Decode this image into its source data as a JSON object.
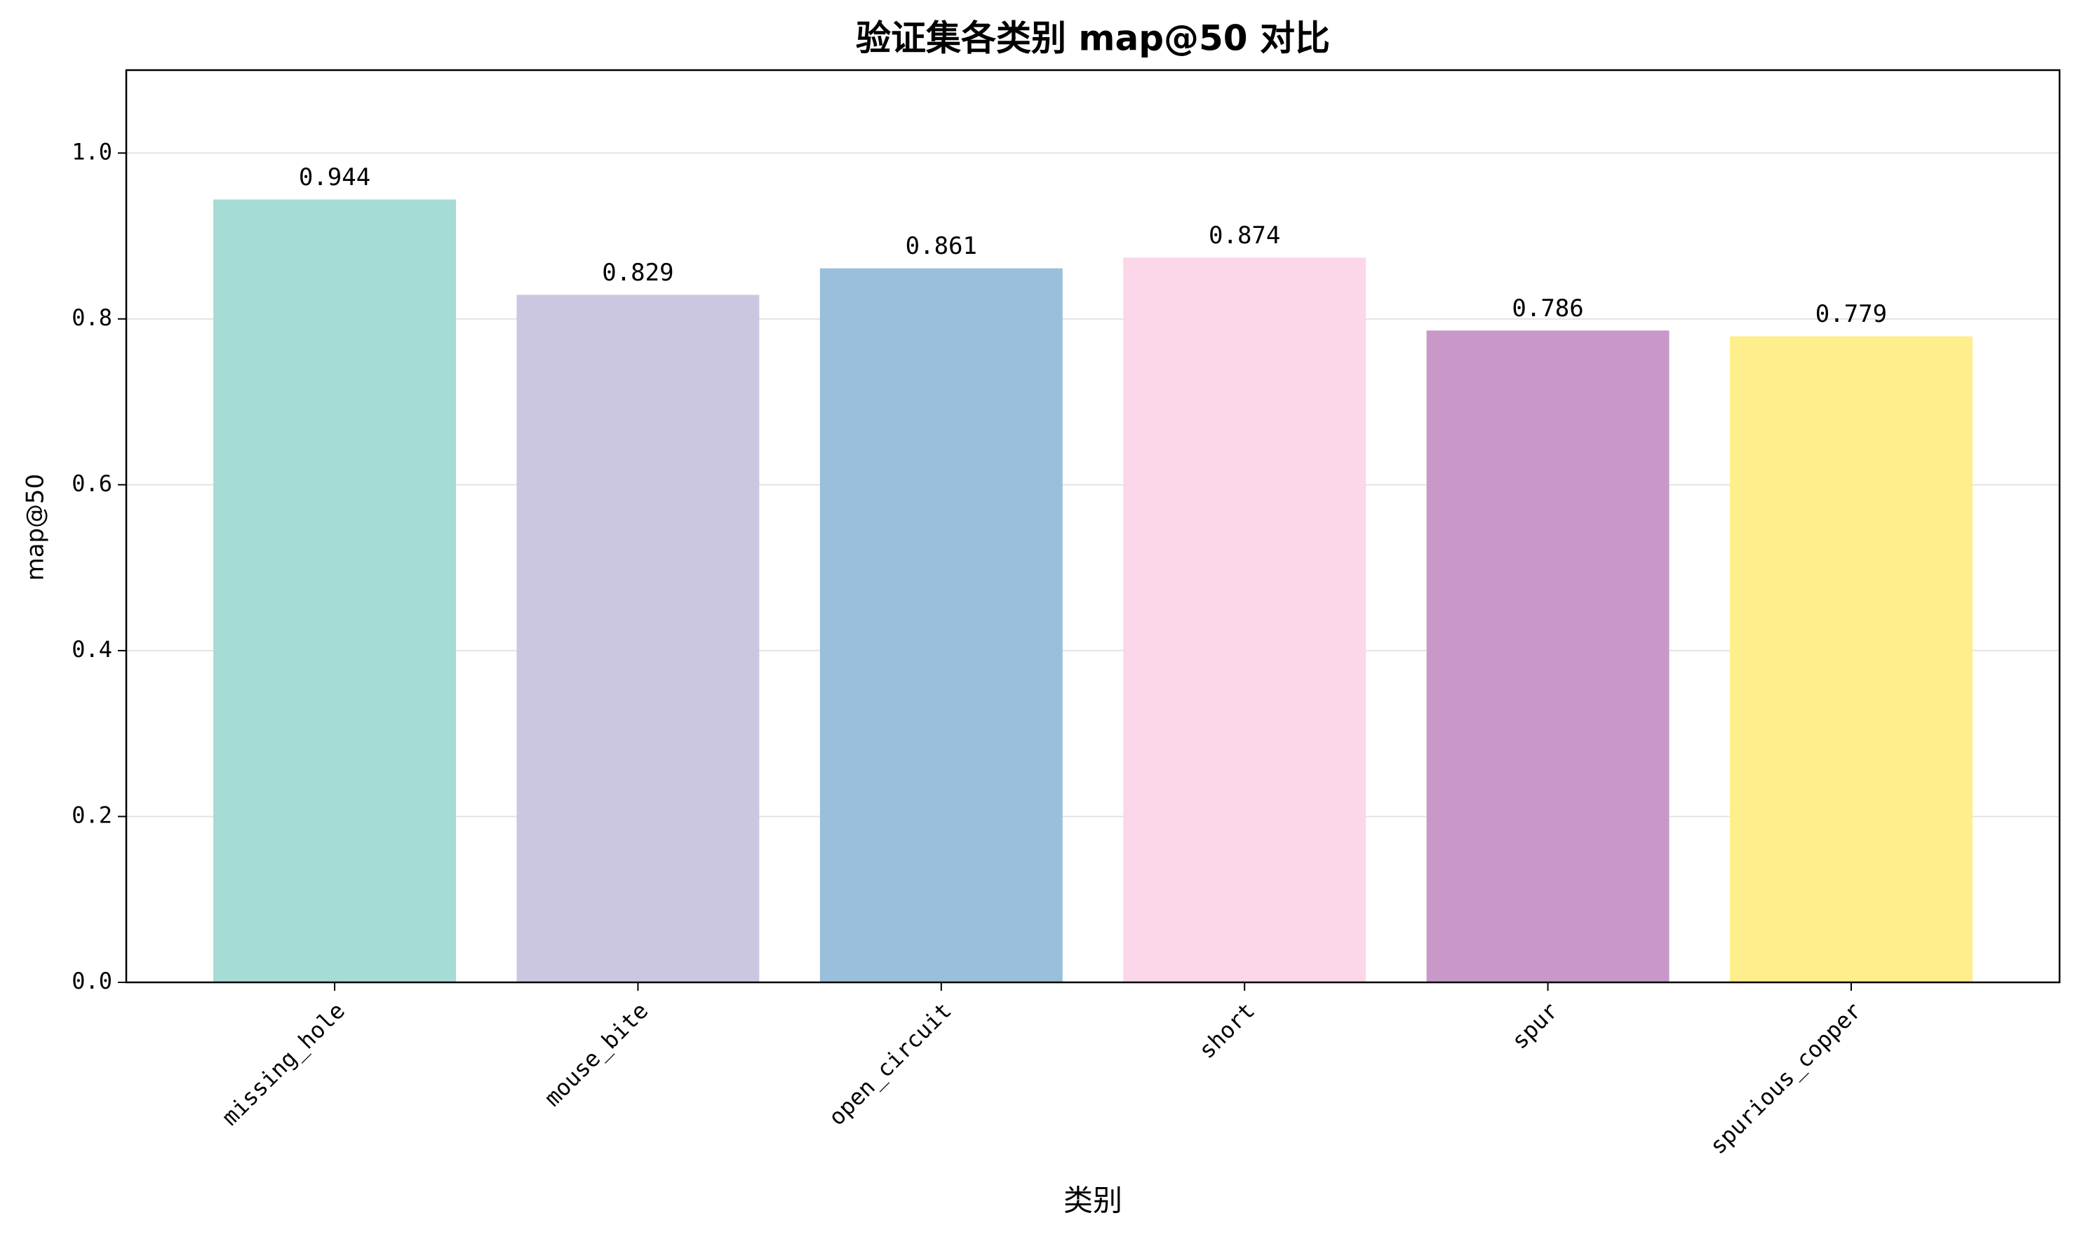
{
  "chart_data": {
    "type": "bar",
    "title": "验证集各类别 map@50 对比",
    "x_label": "类别",
    "y_label": "map@50",
    "categories": [
      "missing_hole",
      "mouse_bite",
      "open_circuit",
      "short",
      "spur",
      "spurious_copper"
    ],
    "values": [
      0.944,
      0.829,
      0.861,
      0.874,
      0.786,
      0.779
    ],
    "colors": [
      "#a5dcd4",
      "#cbc7e1",
      "#9abfda",
      "#fbd7e9",
      "#c899c8",
      "#ffee8c"
    ],
    "ylim": [
      0,
      1.1
    ],
    "yticks": [
      {
        "value": 0,
        "label": "0.0"
      },
      {
        "value": 0.2,
        "label": "0.2"
      },
      {
        "value": 0.4,
        "label": "0.4"
      },
      {
        "value": 0.6,
        "label": "0.6"
      },
      {
        "value": 0.8,
        "label": "0.8"
      },
      {
        "value": 1,
        "label": "1.0"
      }
    ],
    "grid": true
  }
}
